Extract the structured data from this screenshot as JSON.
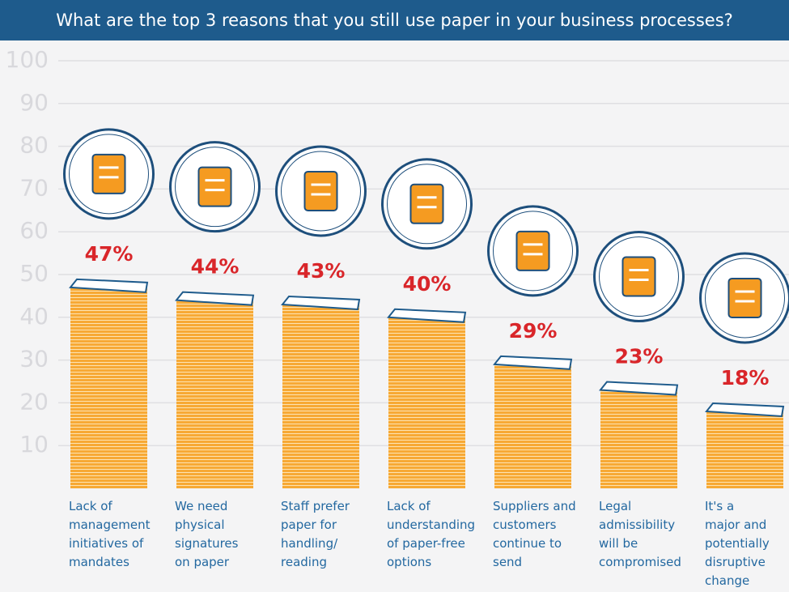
{
  "chart_data": {
    "type": "bar",
    "title": "What are the top 3 reasons that you still use paper in your business processes?",
    "categories": [
      "Lack of\nmanagement\ninitiatives of\nmandates",
      "We need\nphysical\nsignatures\non paper",
      "Staff prefer\npaper for\nhandling/\nreading",
      "Lack of\nunderstanding\nof paper-free\noptions",
      "Suppliers and\ncustomers\ncontinue to\nsend",
      "Legal\nadmissibility\nwill be\ncompromised",
      "It's a\nmajor and\npotentially\ndisruptive\nchange"
    ],
    "values": [
      47,
      44,
      43,
      40,
      29,
      23,
      18
    ],
    "value_labels": [
      "47%",
      "44%",
      "43%",
      "40%",
      "29%",
      "23%",
      "18%"
    ],
    "color": "#f7a935",
    "ylim": [
      0,
      100
    ],
    "yticks": [
      10,
      20,
      30,
      40,
      50,
      60,
      70,
      80,
      90,
      100
    ],
    "grid": true
  }
}
